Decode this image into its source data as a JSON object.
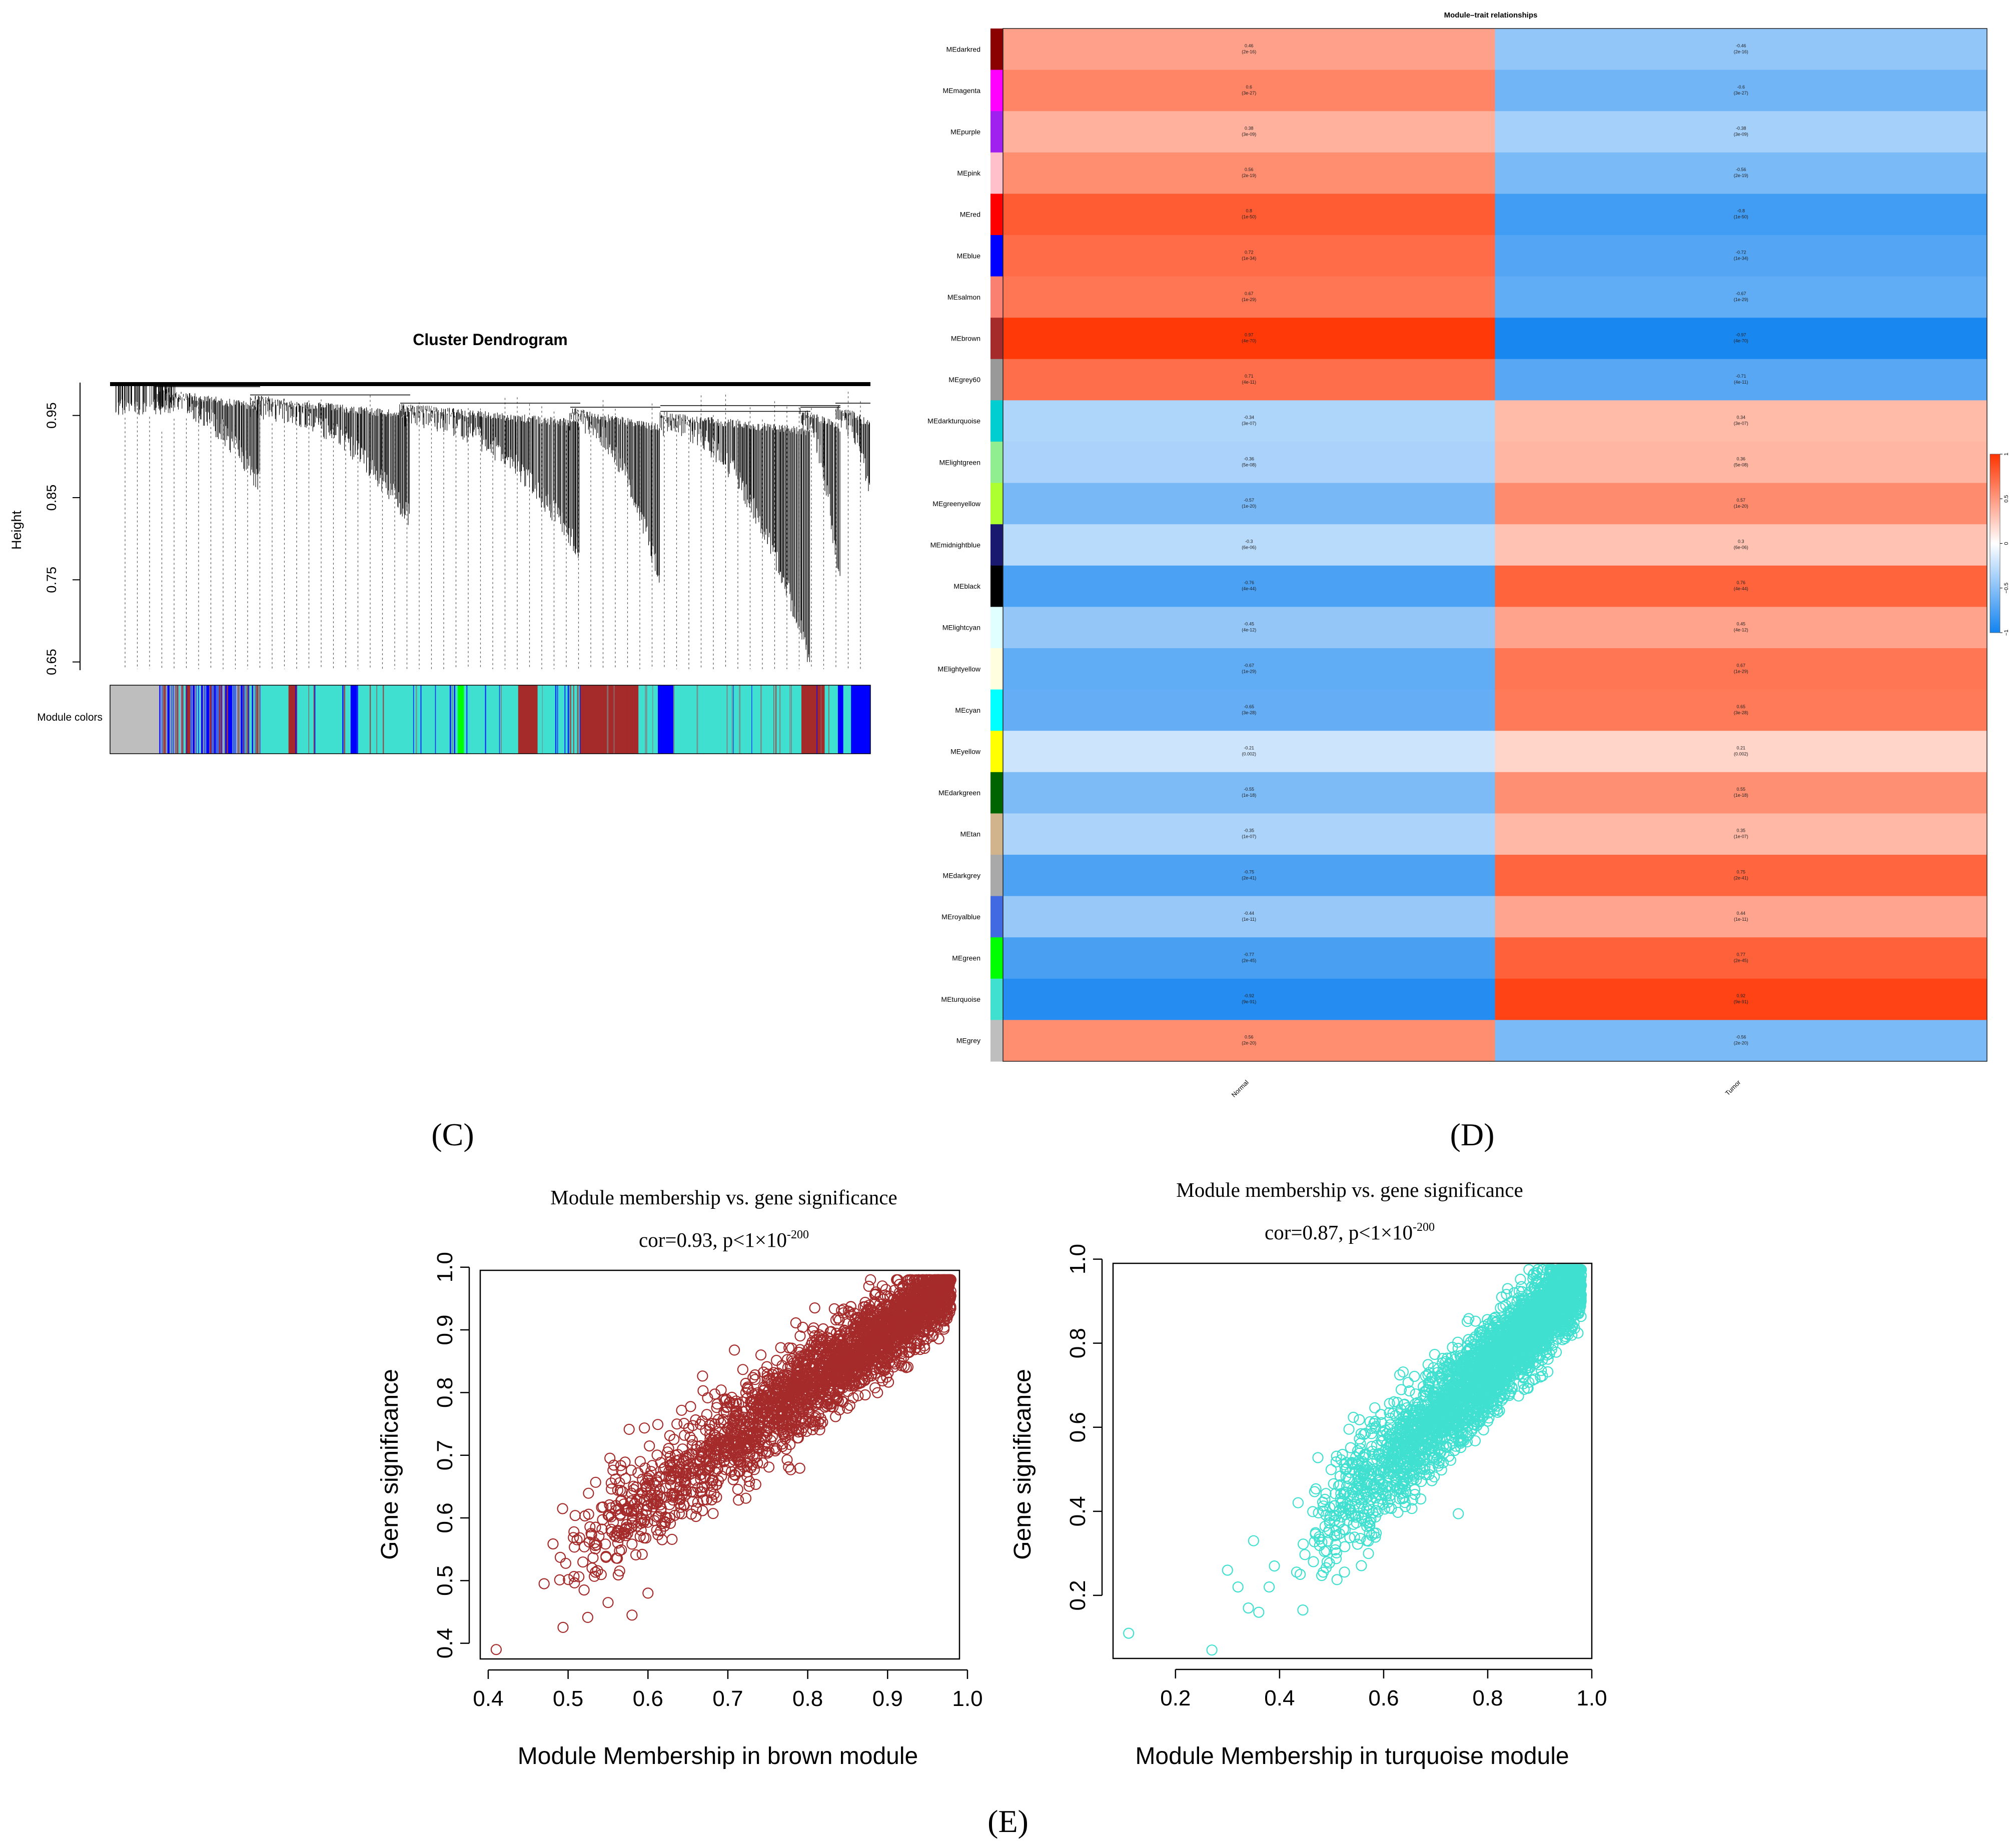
{
  "panel_labels": {
    "c": "(C)",
    "d": "(D)",
    "e": "(E)"
  },
  "colors": {
    "brown": "#A52A2A",
    "turquoise": "#40E0D0",
    "blue": "#0000FF",
    "grey": "#BEBEBE",
    "neg": "#1283F0",
    "mid": "#FFFFFF",
    "pos": "#FF3300"
  },
  "chart_data": [
    {
      "type": "dendrogram",
      "title": "Cluster Dendrogram",
      "ylabel": "Height",
      "yticks": [
        0.65,
        0.75,
        0.85,
        0.95
      ],
      "ylim": [
        0.64,
        0.99
      ],
      "colorbar_label": "Module colors",
      "colorbar_segments": [
        {
          "color": "#BEBEBE",
          "span": 0.065
        },
        {
          "color": "#8FAFD8",
          "span": 0.105
        },
        {
          "color": "#0000FF",
          "span": 0.02
        },
        {
          "color": "#40E0D0",
          "span": 0.04
        },
        {
          "color": "#A52A2A",
          "span": 0.01
        },
        {
          "color": "#40E0D0",
          "span": 0.07
        },
        {
          "color": "#0000FF",
          "span": 0.008
        },
        {
          "color": "#40E0D0",
          "span": 0.13
        },
        {
          "color": "#00FF00",
          "span": 0.008
        },
        {
          "color": "#40E0D0",
          "span": 0.07
        },
        {
          "color": "#A52A2A",
          "span": 0.025
        },
        {
          "color": "#40E0D0",
          "span": 0.055
        },
        {
          "color": "#A52A2A",
          "span": 0.075
        },
        {
          "color": "#40E0D0",
          "span": 0.025
        },
        {
          "color": "#0000FF",
          "span": 0.02
        },
        {
          "color": "#40E0D0",
          "span": 0.165
        },
        {
          "color": "#A52A2A",
          "span": 0.03
        },
        {
          "color": "#40E0D0",
          "span": 0.017
        },
        {
          "color": "#0000FF",
          "span": 0.007
        },
        {
          "color": "#40E0D0",
          "span": 0.01
        },
        {
          "color": "#0000FF",
          "span": 0.025
        }
      ]
    },
    {
      "type": "heatmap",
      "title": "Module–trait relationships",
      "columns": [
        "Normal",
        "Tumor"
      ],
      "rows": [
        {
          "label": "MEdarkred",
          "color": "#8B0000",
          "normal": 0.46,
          "normal_p": "(2e-16)",
          "tumor": -0.46,
          "tumor_p": "(2e-16)"
        },
        {
          "label": "MEmagenta",
          "color": "#FF00FF",
          "normal": 0.6,
          "normal_p": "(3e-27)",
          "tumor": -0.6,
          "tumor_p": "(3e-27)"
        },
        {
          "label": "MEpurple",
          "color": "#A020F0",
          "normal": 0.38,
          "normal_p": "(3e-09)",
          "tumor": -0.38,
          "tumor_p": "(3e-09)"
        },
        {
          "label": "MEpink",
          "color": "#FFC0CB",
          "normal": 0.56,
          "normal_p": "(2e-19)",
          "tumor": -0.56,
          "tumor_p": "(2e-19)"
        },
        {
          "label": "MEred",
          "color": "#FF0000",
          "normal": 0.8,
          "normal_p": "(1e-50)",
          "tumor": -0.8,
          "tumor_p": "(1e-50)"
        },
        {
          "label": "MEblue",
          "color": "#0000FF",
          "normal": 0.72,
          "normal_p": "(1e-34)",
          "tumor": -0.72,
          "tumor_p": "(1e-34)"
        },
        {
          "label": "MEsalmon",
          "color": "#FA8072",
          "normal": 0.67,
          "normal_p": "(1e-29)",
          "tumor": -0.67,
          "tumor_p": "(1e-29)"
        },
        {
          "label": "MEbrown",
          "color": "#A52A2A",
          "normal": 0.97,
          "normal_p": "(4e-70)",
          "tumor": -0.97,
          "tumor_p": "(4e-70)"
        },
        {
          "label": "MEgrey60",
          "color": "#999999",
          "normal": 0.71,
          "normal_p": "(4e-11)",
          "tumor": -0.71,
          "tumor_p": "(4e-11)"
        },
        {
          "label": "MEdarkturquoise",
          "color": "#00CED1",
          "normal": -0.34,
          "normal_p": "(3e-07)",
          "tumor": 0.34,
          "tumor_p": "(3e-07)"
        },
        {
          "label": "MElightgreen",
          "color": "#90EE90",
          "normal": -0.36,
          "normal_p": "(5e-08)",
          "tumor": 0.36,
          "tumor_p": "(5e-08)"
        },
        {
          "label": "MEgreenyellow",
          "color": "#ADFF2F",
          "normal": -0.57,
          "normal_p": "(1e-20)",
          "tumor": 0.57,
          "tumor_p": "(1e-20)"
        },
        {
          "label": "MEmidnightblue",
          "color": "#191970",
          "normal": -0.3,
          "normal_p": "(6e-06)",
          "tumor": 0.3,
          "tumor_p": "(6e-06)"
        },
        {
          "label": "MEblack",
          "color": "#000000",
          "normal": -0.76,
          "normal_p": "(4e-44)",
          "tumor": 0.76,
          "tumor_p": "(4e-44)"
        },
        {
          "label": "MElightcyan",
          "color": "#E0FFFF",
          "normal": -0.45,
          "normal_p": "(4e-12)",
          "tumor": 0.45,
          "tumor_p": "(4e-12)"
        },
        {
          "label": "MElightyellow",
          "color": "#FFFFE0",
          "normal": -0.67,
          "normal_p": "(1e-29)",
          "tumor": 0.67,
          "tumor_p": "(1e-29)"
        },
        {
          "label": "MEcyan",
          "color": "#00FFFF",
          "normal": -0.65,
          "normal_p": "(3e-28)",
          "tumor": 0.65,
          "tumor_p": "(3e-28)"
        },
        {
          "label": "MEyellow",
          "color": "#FFFF00",
          "normal": -0.21,
          "normal_p": "(0.002)",
          "tumor": 0.21,
          "tumor_p": "(0.002)"
        },
        {
          "label": "MEdarkgreen",
          "color": "#006400",
          "normal": -0.55,
          "normal_p": "(1e-18)",
          "tumor": 0.55,
          "tumor_p": "(1e-18)"
        },
        {
          "label": "MEtan",
          "color": "#D2B48C",
          "normal": -0.35,
          "normal_p": "(1e-07)",
          "tumor": 0.35,
          "tumor_p": "(1e-07)"
        },
        {
          "label": "MEdarkgrey",
          "color": "#A9A9A9",
          "normal": -0.75,
          "normal_p": "(2e-41)",
          "tumor": 0.75,
          "tumor_p": "(2e-41)"
        },
        {
          "label": "MEroyalblue",
          "color": "#4169E1",
          "normal": -0.44,
          "normal_p": "(1e-11)",
          "tumor": 0.44,
          "tumor_p": "(1e-11)"
        },
        {
          "label": "MEgreen",
          "color": "#00FF00",
          "normal": -0.77,
          "normal_p": "(2e-45)",
          "tumor": 0.77,
          "tumor_p": "(2e-45)"
        },
        {
          "label": "MEturquoise",
          "color": "#40E0D0",
          "normal": -0.92,
          "normal_p": "(9e-91)",
          "tumor": 0.92,
          "tumor_p": "(9e-91)"
        },
        {
          "label": "MEgrey",
          "color": "#BEBEBE",
          "normal": 0.56,
          "normal_p": "(2e-20)",
          "tumor": -0.56,
          "tumor_p": "(2e-20)"
        }
      ],
      "legend": {
        "ticks": [
          "1",
          "0.5",
          "0",
          "−0.5",
          "−1"
        ],
        "range": [
          -1,
          1
        ],
        "placement": "right"
      }
    },
    {
      "type": "scatter",
      "title": "Module membership vs. gene significance",
      "subtitle_prefix": "cor=0.93, p<1×10",
      "subtitle_exponent": "-200",
      "xlabel": "Module Membership in brown module",
      "ylabel": "Gene significance",
      "xlim": [
        0.39,
        0.99
      ],
      "ylim": [
        0.375,
        0.995
      ],
      "xticks": [
        0.4,
        0.5,
        0.6,
        0.7,
        0.8,
        0.9,
        1.0
      ],
      "xtick_labels": [
        "0.4",
        "0.5",
        "0.6",
        "0.7",
        "0.8",
        "0.9",
        "1.0"
      ],
      "yticks": [
        0.4,
        0.5,
        0.6,
        0.7,
        0.8,
        0.9,
        1.0
      ],
      "ytick_labels": [
        "0.4",
        "0.5",
        "0.6",
        "0.7",
        "0.8",
        "0.9",
        "1.0"
      ],
      "color": "#A52A2A",
      "n_points": 2600,
      "trend": {
        "slope": 0.9,
        "intercept": 0.09,
        "spread": 0.035
      },
      "x_range": [
        0.47,
        0.98
      ],
      "outliers": [
        [
          0.41,
          0.39
        ],
        [
          0.47,
          0.495
        ],
        [
          0.52,
          0.485
        ],
        [
          0.55,
          0.465
        ],
        [
          0.58,
          0.445
        ],
        [
          0.6,
          0.48
        ],
        [
          0.53,
          0.52
        ],
        [
          0.56,
          0.57
        ]
      ]
    },
    {
      "type": "scatter",
      "title": "Module membership vs. gene significance",
      "subtitle_prefix": "cor=0.87, p<1×10",
      "subtitle_exponent": "-200",
      "xlabel": "Module Membership in turquoise module",
      "ylabel": "Gene significance",
      "xlim": [
        0.08,
        1.0
      ],
      "ylim": [
        0.05,
        0.99
      ],
      "xticks": [
        0.2,
        0.4,
        0.6,
        0.8,
        1.0
      ],
      "xtick_labels": [
        "0.2",
        "0.4",
        "0.6",
        "0.8",
        "1.0"
      ],
      "yticks": [
        0.2,
        0.4,
        0.6,
        0.8,
        1.0
      ],
      "ytick_labels": [
        "0.2",
        "0.4",
        "0.6",
        "0.8",
        "1.0"
      ],
      "color": "#40E0D0",
      "n_points": 3200,
      "trend": {
        "slope": 1.2,
        "intercept": -0.22,
        "spread": 0.055
      },
      "x_range": [
        0.42,
        0.98
      ],
      "outliers": [
        [
          0.11,
          0.11
        ],
        [
          0.27,
          0.07
        ],
        [
          0.34,
          0.17
        ],
        [
          0.36,
          0.16
        ],
        [
          0.3,
          0.26
        ],
        [
          0.32,
          0.22
        ],
        [
          0.38,
          0.22
        ],
        [
          0.35,
          0.33
        ],
        [
          0.39,
          0.27
        ]
      ]
    }
  ]
}
